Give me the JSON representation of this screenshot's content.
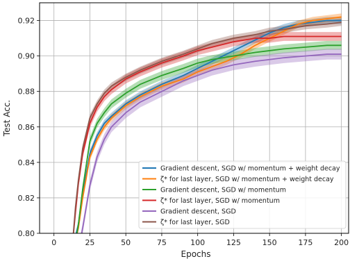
{
  "chart_data": {
    "type": "line",
    "xlabel": "Epochs",
    "ylabel": "Test Acc.",
    "xlim": [
      -10,
      205
    ],
    "ylim": [
      0.8,
      0.93
    ],
    "x_ticks": [
      0,
      25,
      50,
      75,
      100,
      125,
      150,
      175,
      200
    ],
    "y_ticks": [
      0.8,
      0.82,
      0.84,
      0.86,
      0.88,
      0.9,
      0.92
    ],
    "grid": true,
    "legend_position": "lower-right",
    "series": [
      {
        "name": "Gradient descent, SGD w/ momentum + weight decay",
        "color": "#1f77b4",
        "band": 0.002,
        "x": [
          14,
          17,
          20,
          25,
          30,
          35,
          40,
          50,
          60,
          75,
          90,
          100,
          110,
          120,
          125,
          130,
          140,
          150,
          160,
          170,
          180,
          190,
          200
        ],
        "y": [
          0.795,
          0.805,
          0.822,
          0.845,
          0.855,
          0.862,
          0.866,
          0.873,
          0.878,
          0.884,
          0.889,
          0.893,
          0.897,
          0.901,
          0.903,
          0.905,
          0.909,
          0.913,
          0.916,
          0.918,
          0.919,
          0.92,
          0.92
        ]
      },
      {
        "name": "ζ* for last layer, SGD w/ momentum + weight decay",
        "color": "#ff7f0e",
        "band": 0.002,
        "x": [
          14,
          17,
          20,
          25,
          30,
          35,
          40,
          50,
          60,
          75,
          90,
          100,
          110,
          120,
          130,
          140,
          150,
          160,
          170,
          180,
          190,
          200
        ],
        "y": [
          0.793,
          0.803,
          0.82,
          0.843,
          0.853,
          0.86,
          0.865,
          0.872,
          0.877,
          0.883,
          0.887,
          0.891,
          0.894,
          0.897,
          0.901,
          0.906,
          0.91,
          0.914,
          0.918,
          0.92,
          0.921,
          0.922
        ]
      },
      {
        "name": "Gradient descent, SGD w/ momentum",
        "color": "#2ca02c",
        "band": 0.0025,
        "x": [
          14,
          17,
          20,
          25,
          30,
          35,
          40,
          50,
          60,
          75,
          90,
          100,
          110,
          125,
          140,
          150,
          160,
          175,
          190,
          200
        ],
        "y": [
          0.79,
          0.805,
          0.825,
          0.852,
          0.862,
          0.868,
          0.873,
          0.879,
          0.884,
          0.889,
          0.893,
          0.896,
          0.898,
          0.9,
          0.902,
          0.903,
          0.904,
          0.905,
          0.906,
          0.906
        ]
      },
      {
        "name": "ζ* for last layer, SGD w/ momentum",
        "color": "#d62728",
        "band": 0.0025,
        "x": [
          13,
          15,
          17,
          20,
          25,
          30,
          35,
          40,
          50,
          60,
          75,
          90,
          100,
          110,
          125,
          140,
          150,
          160,
          175,
          190,
          200
        ],
        "y": [
          0.795,
          0.812,
          0.828,
          0.845,
          0.862,
          0.871,
          0.877,
          0.881,
          0.887,
          0.891,
          0.896,
          0.9,
          0.903,
          0.905,
          0.908,
          0.91,
          0.91,
          0.911,
          0.911,
          0.911,
          0.911
        ]
      },
      {
        "name": "Gradient descent, SGD",
        "color": "#9467bd",
        "band": 0.003,
        "x": [
          17,
          20,
          25,
          30,
          35,
          40,
          50,
          60,
          75,
          90,
          100,
          110,
          125,
          140,
          150,
          160,
          175,
          190,
          200
        ],
        "y": [
          0.79,
          0.803,
          0.827,
          0.843,
          0.853,
          0.86,
          0.868,
          0.874,
          0.88,
          0.886,
          0.889,
          0.892,
          0.895,
          0.897,
          0.898,
          0.899,
          0.9,
          0.901,
          0.901
        ]
      },
      {
        "name": "ζ* for last layer, SGD",
        "color": "#8c564b",
        "band": 0.002,
        "x": [
          13,
          15,
          17,
          20,
          25,
          30,
          35,
          40,
          50,
          60,
          75,
          90,
          100,
          110,
          125,
          140,
          150,
          160,
          175,
          190,
          200
        ],
        "y": [
          0.795,
          0.815,
          0.83,
          0.848,
          0.865,
          0.873,
          0.879,
          0.883,
          0.888,
          0.892,
          0.897,
          0.901,
          0.904,
          0.907,
          0.91,
          0.912,
          0.914,
          0.915,
          0.917,
          0.918,
          0.919
        ]
      }
    ]
  }
}
